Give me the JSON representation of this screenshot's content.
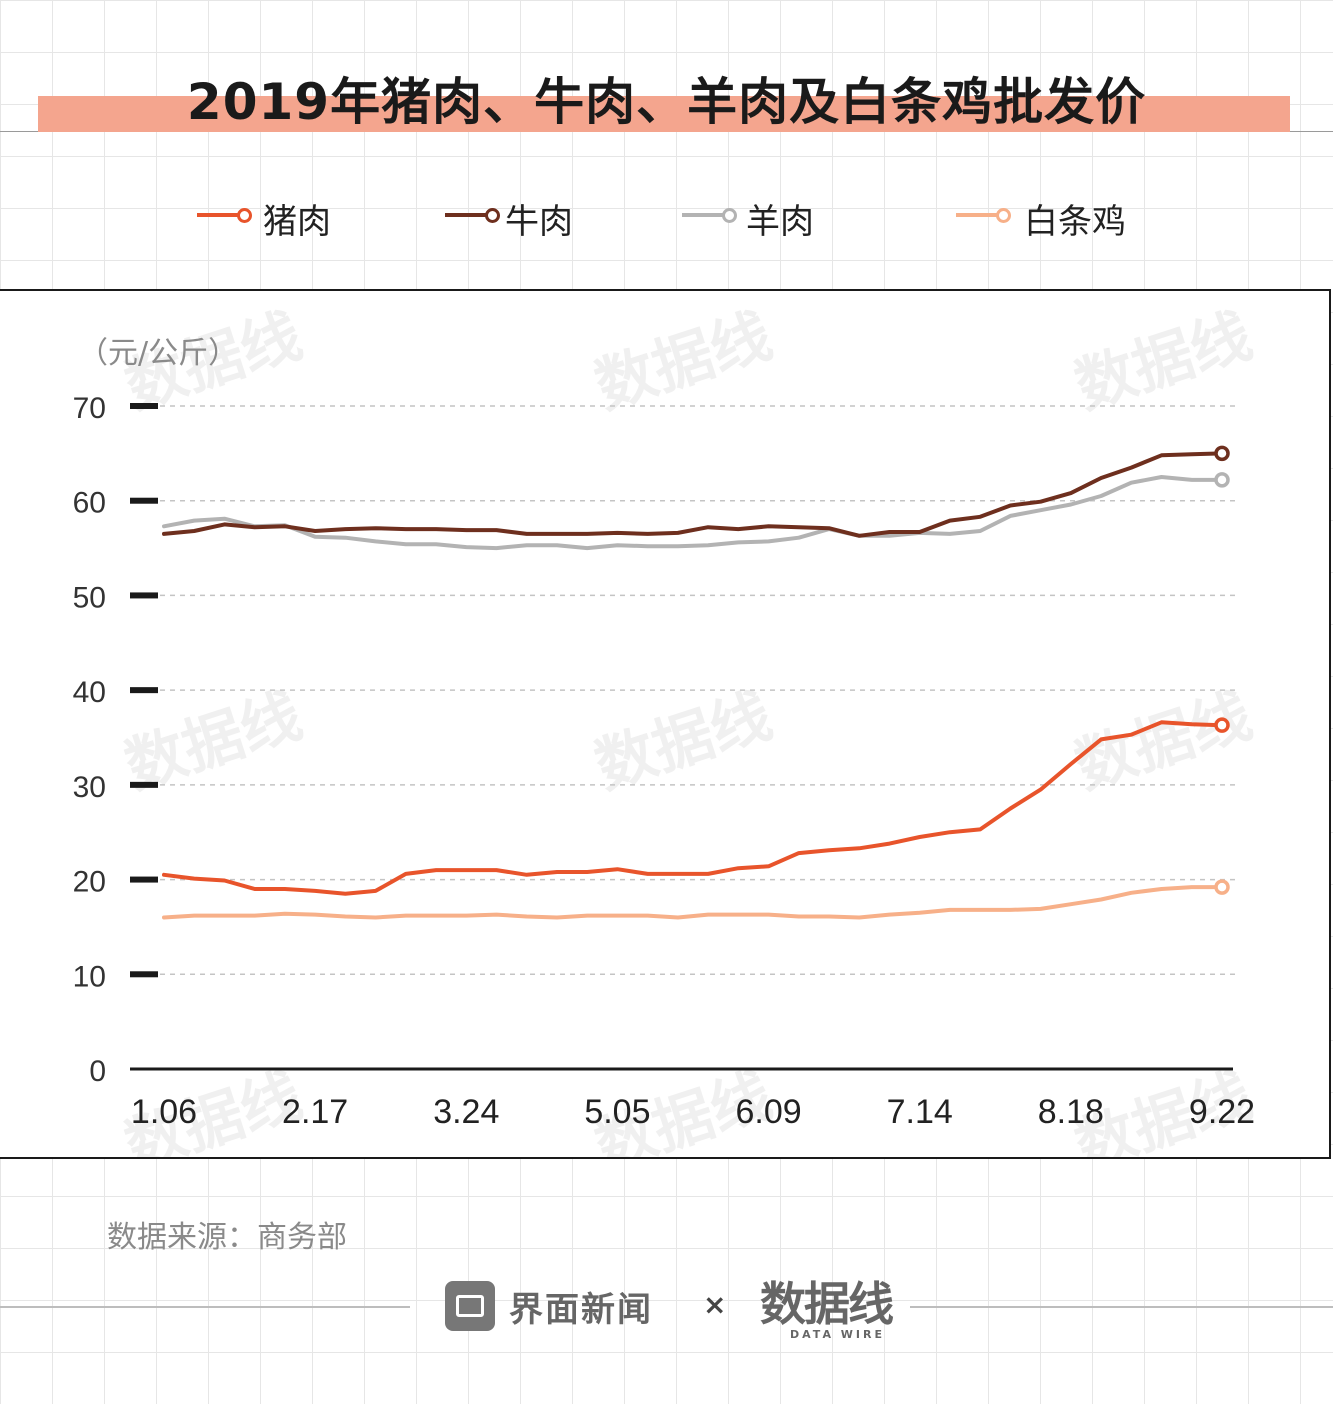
{
  "title": "2019年猪肉、牛肉、羊肉及白条鸡批发价",
  "source": "数据来源：商务部",
  "brands": {
    "primary": "界面新闻",
    "separator": "×",
    "secondary": "数据线",
    "secondary_sub": "DATA WIRE"
  },
  "chart_data": {
    "type": "line",
    "ylabel": "（元/公斤）",
    "ylim": [
      0,
      70
    ],
    "yticks": [
      "0",
      "10",
      "20",
      "30",
      "40",
      "50",
      "60",
      "70"
    ],
    "xtick_labels": [
      {
        "label": "1.06",
        "index": 0
      },
      {
        "label": "2.17",
        "index": 5
      },
      {
        "label": "3.24",
        "index": 10
      },
      {
        "label": "5.05",
        "index": 15
      },
      {
        "label": "6.09",
        "index": 20
      },
      {
        "label": "7.14",
        "index": 25
      },
      {
        "label": "8.18",
        "index": 30
      },
      {
        "label": "9.22",
        "index": 35
      }
    ],
    "grid": true,
    "legend_position": "top",
    "series": [
      {
        "name": "猪肉",
        "color": "#e8542b",
        "values": [
          20.5,
          20.1,
          19.9,
          19.0,
          19.0,
          18.8,
          18.5,
          18.8,
          20.6,
          21.0,
          21.0,
          21.0,
          20.5,
          20.8,
          20.8,
          21.1,
          20.6,
          20.6,
          20.6,
          21.2,
          21.4,
          22.8,
          23.1,
          23.3,
          23.8,
          24.5,
          25.0,
          25.3,
          27.5,
          29.5,
          32.2,
          34.8,
          35.3,
          36.6,
          36.4,
          36.3
        ]
      },
      {
        "name": "牛肉",
        "color": "#6e2f1e",
        "values": [
          56.5,
          56.8,
          57.5,
          57.2,
          57.3,
          56.8,
          57.0,
          57.1,
          57.0,
          57.0,
          56.9,
          56.9,
          56.5,
          56.5,
          56.5,
          56.6,
          56.5,
          56.6,
          57.2,
          57.0,
          57.3,
          57.2,
          57.1,
          56.3,
          56.7,
          56.7,
          57.9,
          58.3,
          59.5,
          59.9,
          60.8,
          62.4,
          63.5,
          64.8,
          64.9,
          65.0
        ]
      },
      {
        "name": "羊肉",
        "color": "#b3b3b3",
        "values": [
          57.3,
          57.9,
          58.1,
          57.3,
          57.4,
          56.2,
          56.1,
          55.7,
          55.4,
          55.4,
          55.1,
          55.0,
          55.3,
          55.3,
          55.0,
          55.3,
          55.2,
          55.2,
          55.3,
          55.6,
          55.7,
          56.1,
          57.0,
          56.3,
          56.3,
          56.6,
          56.5,
          56.8,
          58.4,
          59.0,
          59.6,
          60.5,
          61.9,
          62.5,
          62.2,
          62.2
        ]
      },
      {
        "name": "白条鸡",
        "color": "#f7b089",
        "values": [
          16.0,
          16.2,
          16.2,
          16.2,
          16.4,
          16.3,
          16.1,
          16.0,
          16.2,
          16.2,
          16.2,
          16.3,
          16.1,
          16.0,
          16.2,
          16.2,
          16.2,
          16.0,
          16.3,
          16.3,
          16.3,
          16.1,
          16.1,
          16.0,
          16.3,
          16.5,
          16.8,
          16.8,
          16.8,
          16.9,
          17.4,
          17.9,
          18.6,
          19.0,
          19.2,
          19.2
        ]
      }
    ]
  }
}
